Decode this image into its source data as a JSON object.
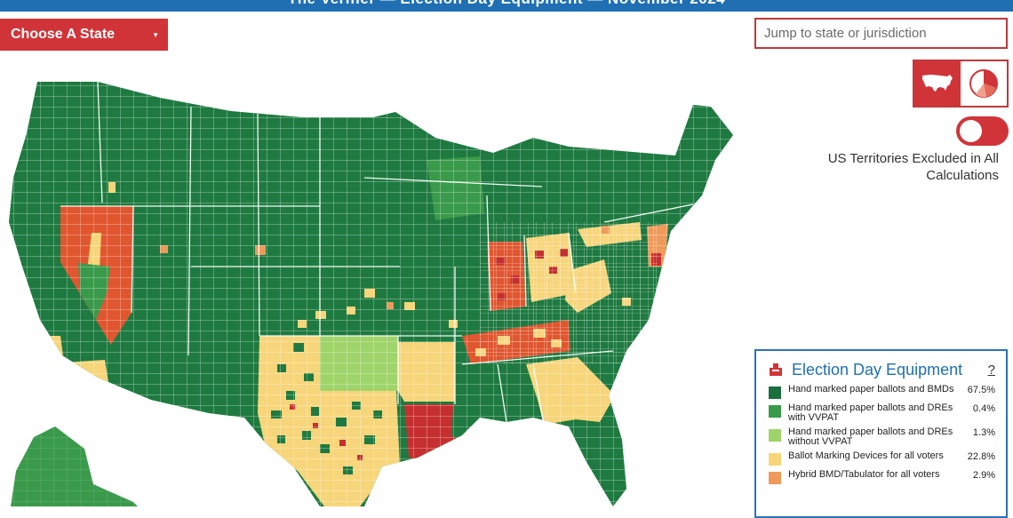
{
  "header": {
    "title": "The Verifier — Election Day Equipment — November 2024"
  },
  "controls": {
    "choose_state_label": "Choose A State",
    "jump_placeholder": "Jump to state or jurisdiction",
    "territories_note": "US Territories Excluded in All Calculations",
    "active_view": "map"
  },
  "legend": {
    "title": "Election Day Equipment",
    "help": "?",
    "items": [
      {
        "label": "Hand marked paper ballots and BMDs",
        "value": "67.5%",
        "color": "#1b6e3d"
      },
      {
        "label": "Hand marked paper ballots and DREs with VVPAT",
        "value": "0.4%",
        "color": "#3a9a4b"
      },
      {
        "label": "Hand marked paper ballots and DREs without VVPAT",
        "value": "1.3%",
        "color": "#9fd46a"
      },
      {
        "label": "Ballot Marking Devices for all voters",
        "value": "22.8%",
        "color": "#f7d57a"
      },
      {
        "label": "Hybrid BMD/Tabulator for all voters",
        "value": "2.9%",
        "color": "#ef9a5a"
      }
    ]
  },
  "colors": {
    "green_dark": "#1e7a40",
    "green_mid": "#3a9a4b",
    "green_light": "#9fd46a",
    "yellow": "#f7d57a",
    "orange": "#ef9a5a",
    "red_orange": "#e0562f",
    "red": "#c62f2f",
    "accent": "#d13438",
    "brand_blue": "#1f6fb2"
  }
}
